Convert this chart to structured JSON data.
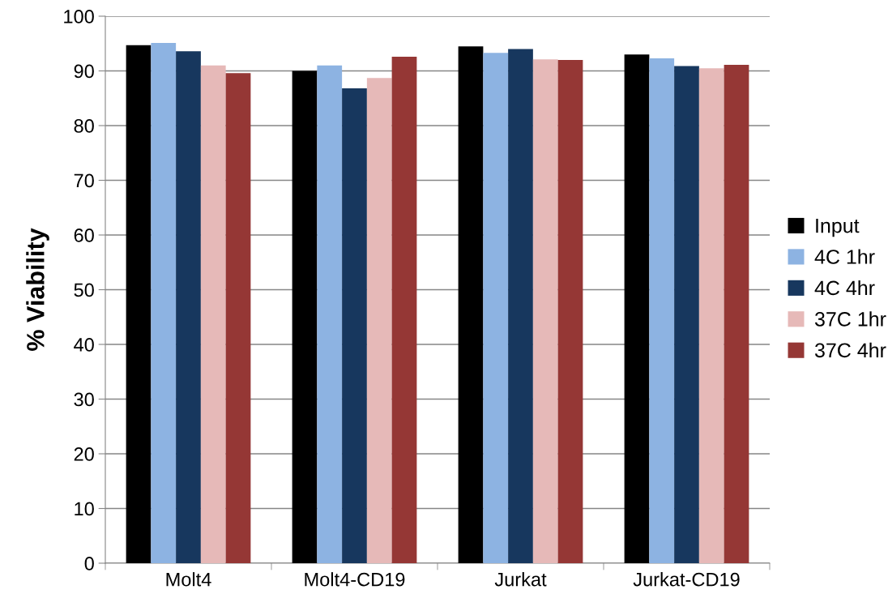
{
  "chart_data": {
    "type": "bar",
    "ylabel": "% Viability",
    "categories": [
      "Molt4",
      "Molt4-CD19",
      "Jurkat",
      "Jurkat-CD19"
    ],
    "series": [
      {
        "name": "Input",
        "color": "#000000",
        "values": [
          94.7,
          90.0,
          94.5,
          93.0
        ]
      },
      {
        "name": "4C 1hr",
        "color": "#8db3e2",
        "values": [
          95.1,
          91.0,
          93.3,
          92.3
        ]
      },
      {
        "name": "4C 4hr",
        "color": "#17375e",
        "values": [
          93.6,
          86.8,
          94.0,
          90.9
        ]
      },
      {
        "name": "37C 1hr",
        "color": "#e6b9b8",
        "values": [
          91.0,
          88.7,
          92.1,
          90.5
        ]
      },
      {
        "name": "37C 4hr",
        "color": "#953735",
        "values": [
          89.6,
          92.6,
          92.0,
          91.1
        ]
      }
    ],
    "ylim": [
      0,
      100
    ],
    "yticks": [
      0,
      10,
      20,
      30,
      40,
      50,
      60,
      70,
      80,
      90,
      100
    ],
    "grid": "y",
    "legend": "right"
  }
}
